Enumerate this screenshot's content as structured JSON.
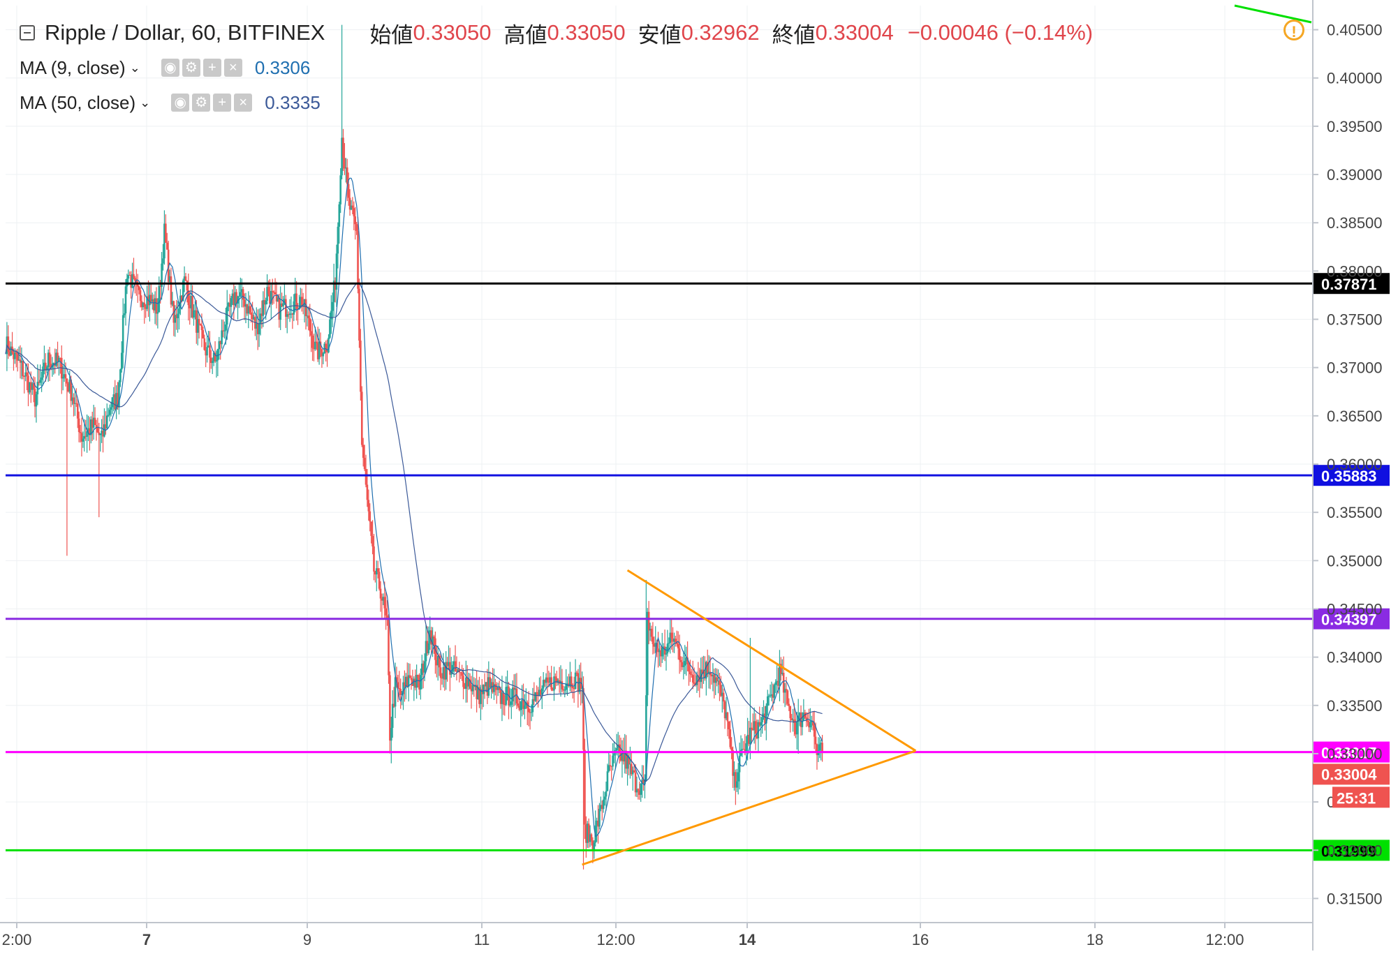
{
  "header": {
    "symbol": "Ripple / Dollar, 60, BITFINEX",
    "open_label": "始値",
    "open": "0.33050",
    "high_label": "高値",
    "high": "0.33050",
    "low_label": "安値",
    "low": "0.32962",
    "close_label": "終値",
    "close": "0.33004",
    "change": "−0.00046 (−0.14%)"
  },
  "indicators": [
    {
      "name": "MA (9, close)",
      "value": "0.3306",
      "color": "#1f6fb0"
    },
    {
      "name": "MA (50, close)",
      "value": "0.3335",
      "color": "#3b5998"
    }
  ],
  "alert_icon": "exclamation-icon",
  "chart_data": {
    "type": "candlestick",
    "y_range": [
      0.3125,
      0.4075
    ],
    "y_ticks": [
      "0.31500",
      "0.32000",
      "0.32500",
      "0.33000",
      "0.33500",
      "0.34000",
      "0.34500",
      "0.35000",
      "0.35500",
      "0.36000",
      "0.36500",
      "0.37000",
      "0.37500",
      "0.38000",
      "0.38500",
      "0.39000",
      "0.39500",
      "0.40000",
      "0.40500"
    ],
    "x_ticks": [
      "2:00",
      "7",
      "9",
      "11",
      "12:00",
      "14",
      "16",
      "18",
      "12:00"
    ],
    "horizontal_lines": [
      {
        "value": 0.37871,
        "label": "0.37871",
        "color": "#000000"
      },
      {
        "value": 0.35883,
        "label": "0.35883",
        "color": "#1010e0"
      },
      {
        "value": 0.34397,
        "label": "0.34397",
        "color": "#8a2be2"
      },
      {
        "value": 0.33017,
        "label": "0.33017",
        "color": "#ff00ff"
      },
      {
        "value": 0.31999,
        "label": "0.31999",
        "color": "#00e000"
      }
    ],
    "last_price_label": "0.33004",
    "countdown": "25:31",
    "colors": {
      "up": "#26a69a",
      "down": "#ef5350",
      "triangle": "#ff9900",
      "ma9": "#1f6fb0",
      "ma50": "#3b5998"
    },
    "anchor_prices": [
      [
        0,
        0.3725
      ],
      [
        12,
        0.37
      ],
      [
        22,
        0.3668
      ],
      [
        32,
        0.3708
      ],
      [
        40,
        0.3705
      ],
      [
        50,
        0.3672
      ],
      [
        57,
        0.3628
      ],
      [
        66,
        0.364
      ],
      [
        72,
        0.3625
      ],
      [
        78,
        0.366
      ],
      [
        84,
        0.3668
      ],
      [
        91,
        0.38
      ],
      [
        99,
        0.3775
      ],
      [
        108,
        0.377
      ],
      [
        114,
        0.376
      ],
      [
        119,
        0.384
      ],
      [
        126,
        0.3745
      ],
      [
        134,
        0.379
      ],
      [
        141,
        0.3755
      ],
      [
        149,
        0.372
      ],
      [
        157,
        0.3705
      ],
      [
        164,
        0.3745
      ],
      [
        172,
        0.3775
      ],
      [
        179,
        0.377
      ],
      [
        188,
        0.374
      ],
      [
        196,
        0.378
      ],
      [
        205,
        0.376
      ],
      [
        214,
        0.3765
      ],
      [
        222,
        0.377
      ],
      [
        228,
        0.374
      ],
      [
        233,
        0.3715
      ],
      [
        241,
        0.3725
      ],
      [
        247,
        0.379
      ],
      [
        252,
        0.394
      ],
      [
        257,
        0.387
      ],
      [
        263,
        0.384
      ],
      [
        267,
        0.362
      ],
      [
        271,
        0.356
      ],
      [
        276,
        0.349
      ],
      [
        281,
        0.347
      ],
      [
        286,
        0.343
      ],
      [
        288,
        0.332
      ],
      [
        292,
        0.337
      ],
      [
        296,
        0.336
      ],
      [
        303,
        0.338
      ],
      [
        310,
        0.337
      ],
      [
        318,
        0.343
      ],
      [
        325,
        0.3385
      ],
      [
        333,
        0.339
      ],
      [
        340,
        0.338
      ],
      [
        347,
        0.3375
      ],
      [
        354,
        0.336
      ],
      [
        362,
        0.337
      ],
      [
        370,
        0.3358
      ],
      [
        378,
        0.336
      ],
      [
        386,
        0.3355
      ],
      [
        394,
        0.3352
      ],
      [
        402,
        0.3365
      ],
      [
        410,
        0.3375
      ],
      [
        418,
        0.3375
      ],
      [
        426,
        0.3378
      ],
      [
        432,
        0.337
      ],
      [
        434,
        0.322
      ],
      [
        440,
        0.321
      ],
      [
        446,
        0.324
      ],
      [
        452,
        0.328
      ],
      [
        458,
        0.33
      ],
      [
        464,
        0.3295
      ],
      [
        472,
        0.327
      ],
      [
        479,
        0.3265
      ],
      [
        481,
        0.344
      ],
      [
        486,
        0.341
      ],
      [
        493,
        0.3405
      ],
      [
        500,
        0.342
      ],
      [
        508,
        0.3395
      ],
      [
        516,
        0.338
      ],
      [
        522,
        0.3385
      ],
      [
        528,
        0.339
      ],
      [
        534,
        0.337
      ],
      [
        540,
        0.334
      ],
      [
        546,
        0.327
      ],
      [
        552,
        0.33
      ],
      [
        558,
        0.332
      ],
      [
        566,
        0.333
      ],
      [
        574,
        0.336
      ],
      [
        580,
        0.3385
      ],
      [
        586,
        0.335
      ],
      [
        592,
        0.333
      ],
      [
        598,
        0.334
      ],
      [
        604,
        0.3335
      ],
      [
        608,
        0.33
      ],
      [
        612,
        0.3302
      ]
    ],
    "triangle": {
      "upper": [
        [
          466,
          0.349
        ],
        [
          682,
          0.3303
        ]
      ],
      "lower": [
        [
          432,
          0.3185
        ],
        [
          682,
          0.3303
        ]
      ]
    }
  }
}
